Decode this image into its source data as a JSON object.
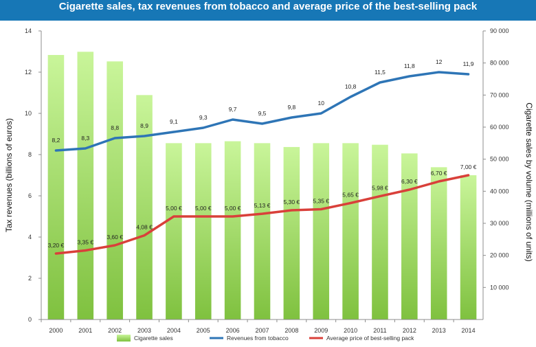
{
  "chart_data": {
    "type": "bar",
    "title": "Cigarette sales, tax revenues from tobacco and average price of the best-selling pack",
    "categories": [
      "2000",
      "2001",
      "2002",
      "2003",
      "2004",
      "2005",
      "2006",
      "2007",
      "2008",
      "2009",
      "2010",
      "2011",
      "2012",
      "2013",
      "2014"
    ],
    "y_left": {
      "label": "Tax revenues (billions of euros)",
      "range": [
        0,
        14
      ],
      "ticks": [
        "0",
        "2",
        "4",
        "6",
        "8",
        "10",
        "12",
        "14"
      ]
    },
    "y_right": {
      "label": "Cigarette sales by volume (millions of units)",
      "range": [
        0,
        90000
      ],
      "ticks": [
        "10 000",
        "20 000",
        "30 000",
        "40 000",
        "50 000",
        "60 000",
        "70 000",
        "80 000",
        "90 000"
      ]
    },
    "series": [
      {
        "name": "Cigarette sales",
        "type": "bar",
        "axis": "right",
        "color": "#8fd14f",
        "values": [
          82500,
          83500,
          80500,
          70000,
          55000,
          55000,
          55600,
          55000,
          53800,
          55000,
          55000,
          54500,
          51800,
          47500,
          45000
        ]
      },
      {
        "name": "Revenues from tobacco",
        "type": "line",
        "axis": "left",
        "color": "#2e75b6",
        "values": [
          8.2,
          8.3,
          8.8,
          8.9,
          9.1,
          9.3,
          9.7,
          9.5,
          9.8,
          10,
          10.8,
          11.5,
          11.8,
          12,
          11.9
        ],
        "labels": [
          "8,2",
          "8,3",
          "8,8",
          "8,9",
          "9,1",
          "9,3",
          "9,7",
          "9,5",
          "9,8",
          "10",
          "10,8",
          "11,5",
          "11,8",
          "12",
          "11,9"
        ]
      },
      {
        "name": "Average price of best-selling pack",
        "type": "line",
        "axis": "left",
        "color": "#d9403a",
        "values": [
          3.2,
          3.35,
          3.6,
          4.08,
          5.0,
          5.0,
          5.0,
          5.13,
          5.3,
          5.35,
          5.65,
          5.98,
          6.3,
          6.7,
          7.0
        ],
        "labels": [
          "3,20 €",
          "3,35 €",
          "3,60 €",
          "4,08 €",
          "5,00 €",
          "5,00 €",
          "5,00 €",
          "5,13 €",
          "5,30 €",
          "5,35 €",
          "5,65 €",
          "5,98 €",
          "6,30 €",
          "6,70 €",
          "7,00 €"
        ]
      }
    ],
    "legend_position": "bottom"
  }
}
